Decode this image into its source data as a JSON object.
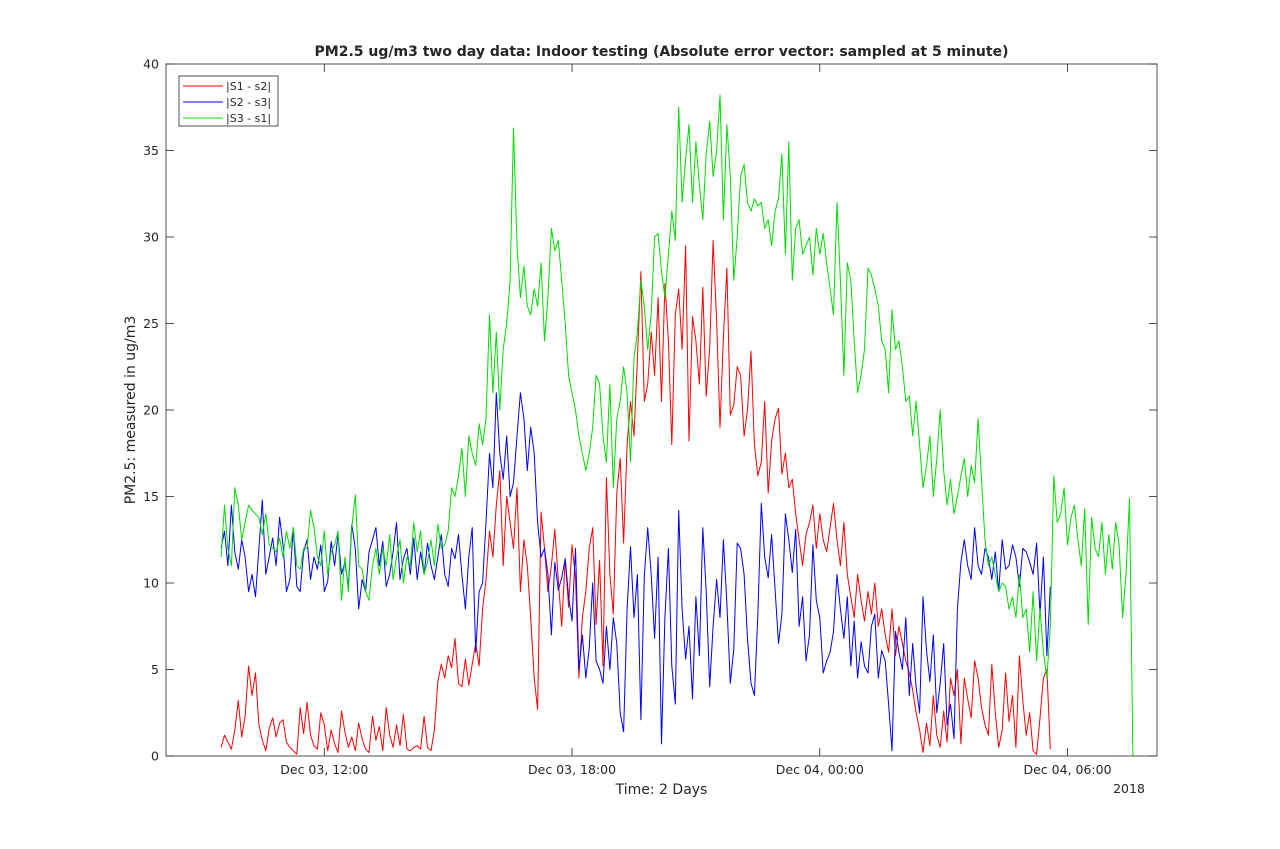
{
  "chart_data": {
    "type": "line",
    "title": "PM2.5 ug/m3 two day data: Indoor testing (Absolute error vector: sampled at 5 minute)",
    "xlabel": "Time: 2 Days",
    "ylabel": "PM2.5: measured in ug/m3",
    "x_year_label": "2018",
    "ylim": [
      0,
      40
    ],
    "yticks": [
      0,
      5,
      10,
      15,
      20,
      25,
      30,
      35,
      40
    ],
    "xlim": [
      "2018-12-03 08:10",
      "2018-12-04 08:10"
    ],
    "xticks": [
      {
        "value": "2018-12-03 12:00",
        "label": "Dec 03, 12:00"
      },
      {
        "value": "2018-12-03 18:00",
        "label": "Dec 03, 18:00"
      },
      {
        "value": "2018-12-04 00:00",
        "label": "Dec 04, 00:00"
      },
      {
        "value": "2018-12-04 06:00",
        "label": "Dec 04, 06:00"
      }
    ],
    "x_start": "2018-12-03 09:30",
    "x_step_minutes": 5,
    "legend_position": "top-left",
    "grid": false,
    "series": [
      {
        "name": "|S1 - s2|",
        "color": "#ff0000",
        "values": [
          0.5,
          1.2,
          0.8,
          0.4,
          1.5,
          3.2,
          1.1,
          2.3,
          5.2,
          3.5,
          4.8,
          1.8,
          0.9,
          0.3,
          1.6,
          2.2,
          1.1,
          1.9,
          2.1,
          0.8,
          0.5,
          0.3,
          0.1,
          2.8,
          1.3,
          3.1,
          1.2,
          0.6,
          0.4,
          2.5,
          1.8,
          0.3,
          1.5,
          0.7,
          0.2,
          2.6,
          1.4,
          0.5,
          1.1,
          0.3,
          1.9,
          1.0,
          0.4,
          0.2,
          2.3,
          0.9,
          1.7,
          0.3,
          2.8,
          1.2,
          0.5,
          1.8,
          0.6,
          2.4,
          0.4,
          0.3,
          0.5,
          0.6,
          0.4,
          2.3,
          0.5,
          0.3,
          1.5,
          4.3,
          5.3,
          4.5,
          5.8,
          5.1,
          6.8,
          4.2,
          4.0,
          5.6,
          4.1,
          5.3,
          6.5,
          5.2,
          8.5,
          10.2,
          13.0,
          11.5,
          14.5,
          16.5,
          11.0,
          15.0,
          13.5,
          12.0,
          15.5,
          9.5,
          12.5,
          11.0,
          8.0,
          4.5,
          2.7,
          14.1,
          12.0,
          9.5,
          11.0,
          13.1,
          10.2,
          7.5,
          11.4,
          8.6,
          12.2,
          10.3,
          4.5,
          8.0,
          9.5,
          12.0,
          13.2,
          7.6,
          11.3,
          5.2,
          16.1,
          10.5,
          8.2,
          15.2,
          17.2,
          12.3,
          18.0,
          20.5,
          18.5,
          23.0,
          28.0,
          20.5,
          21.5,
          24.5,
          22.0,
          26.5,
          20.5,
          27.3,
          24.0,
          18.0,
          25.5,
          27.0,
          23.5,
          29.5,
          18.2,
          25.4,
          24.0,
          21.5,
          27.1,
          20.8,
          23.6,
          29.8,
          25.2,
          19.0,
          24.2,
          28.2,
          19.7,
          20.3,
          22.5,
          22.0,
          18.5,
          20.0,
          23.4,
          18.0,
          16.2,
          17.0,
          20.5,
          15.2,
          18.2,
          19.5,
          20.1,
          16.3,
          17.5,
          15.5,
          16.0,
          14.0,
          12.5,
          11.0,
          12.8,
          13.5,
          14.5,
          12.0,
          14.0,
          12.5,
          11.8,
          13.2,
          14.6,
          12.5,
          11.0,
          13.5,
          10.5,
          9.2,
          8.0,
          10.5,
          9.0,
          7.8,
          9.5,
          8.2,
          10.0,
          7.5,
          8.5,
          7.0,
          6.0,
          8.5,
          5.8,
          7.5,
          6.5,
          5.5,
          4.8,
          3.8,
          2.5,
          1.5,
          0.2,
          1.9,
          0.6,
          3.5,
          1.2,
          0.5,
          2.6,
          0.8,
          4.5,
          3.5,
          5.0,
          0.7,
          4.5,
          3.3,
          2.2,
          5.5,
          4.5,
          2.8,
          1.8,
          1.2,
          5.3,
          2.5,
          0.5,
          1.5,
          4.8,
          2.0,
          3.5,
          0.5,
          5.8,
          3.2,
          1.2,
          2.5,
          0.3,
          0.1,
          2.2,
          4.5,
          5.0,
          0.4
        ]
      },
      {
        "name": "|S2 - s3|",
        "color": "#0000ff",
        "values": [
          12.0,
          13.0,
          11.0,
          14.5,
          11.8,
          10.8,
          12.5,
          11.5,
          9.5,
          10.5,
          9.2,
          12.0,
          14.8,
          10.5,
          11.5,
          12.6,
          11.0,
          13.8,
          12.2,
          9.5,
          10.2,
          13.2,
          9.8,
          9.5,
          11.8,
          12.5,
          10.2,
          11.5,
          10.8,
          12.2,
          9.5,
          10.1,
          12.4,
          11.0,
          12.8,
          10.5,
          11.2,
          9.8,
          13.4,
          12.0,
          8.5,
          10.2,
          9.5,
          11.8,
          12.5,
          13.2,
          11.0,
          12.4,
          9.8,
          10.5,
          11.8,
          13.5,
          10.2,
          11.4,
          12.0,
          10.5,
          12.6,
          10.2,
          11.8,
          10.5,
          12.3,
          11.0,
          10.2,
          11.5,
          12.8,
          10.5,
          9.8,
          12.0,
          11.4,
          12.8,
          10.5,
          8.5,
          11.5,
          13.2,
          6.0,
          9.5,
          10.0,
          13.5,
          17.5,
          15.5,
          21.0,
          17.5,
          16.0,
          18.5,
          15.0,
          15.8,
          18.5,
          21.0,
          19.5,
          16.5,
          19.0,
          17.5,
          13.5,
          11.5,
          12.0,
          10.5,
          7.0,
          11.2,
          9.6,
          10.3,
          11.4,
          9.2,
          7.8,
          12.0,
          5.0,
          7.0,
          4.5,
          6.2,
          10.0,
          5.5,
          5.0,
          4.2,
          7.5,
          5.0,
          8.0,
          6.5,
          2.5,
          1.4,
          8.5,
          12.1,
          8.0,
          10.5,
          2.1,
          10.4,
          13.2,
          10.5,
          6.8,
          11.5,
          0.7,
          8.0,
          12.0,
          5.2,
          3.0,
          14.2,
          8.5,
          5.6,
          7.5,
          3.3,
          9.2,
          5.8,
          13.2,
          9.5,
          4.0,
          7.5,
          10.2,
          8.0,
          12.5,
          8.8,
          4.2,
          6.2,
          12.3,
          12.0,
          10.5,
          6.8,
          4.2,
          3.5,
          8.1,
          14.6,
          11.5,
          10.3,
          12.8,
          9.6,
          6.5,
          8.2,
          14.0,
          12.5,
          10.6,
          13.1,
          7.5,
          9.2,
          5.5,
          7.0,
          12.2,
          9.0,
          8.0,
          4.8,
          5.5,
          6.0,
          7.2,
          10.5,
          8.5,
          6.8,
          9.2,
          5.2,
          7.8,
          4.5,
          6.6,
          5.2,
          4.8,
          7.5,
          8.2,
          4.5,
          6.1,
          5.5,
          3.0,
          0.3,
          7.2,
          6.0,
          5.0,
          8.0,
          3.5,
          6.5,
          4.0,
          2.5,
          9.2,
          6.1,
          4.3,
          7.0,
          2.5,
          4.2,
          6.5,
          1.8,
          3.0,
          1.0,
          8.5,
          11.2,
          12.5,
          11.0,
          10.2,
          13.2,
          11.0,
          10.5,
          12.0,
          11.5,
          10.2,
          11.8,
          9.5,
          12.5,
          10.8,
          11.0,
          12.2,
          11.5,
          9.8,
          12.0,
          11.8,
          11.2,
          10.5,
          12.3,
          8.2,
          11.5,
          5.8,
          9.8
        ]
      },
      {
        "name": "|S3 - s1|",
        "color": "#00dd00",
        "values": [
          11.5,
          14.5,
          12.0,
          11.0,
          15.5,
          14.5,
          12.5,
          13.5,
          14.5,
          14.2,
          14.0,
          13.8,
          12.8,
          14.0,
          12.2,
          12.0,
          11.8,
          12.6,
          11.5,
          13.0,
          12.0,
          13.2,
          11.0,
          10.8,
          12.0,
          12.0,
          14.2,
          13.2,
          11.5,
          11.0,
          13.0,
          10.5,
          11.8,
          12.2,
          13.0,
          9.0,
          11.5,
          9.5,
          13.2,
          15.1,
          11.0,
          10.8,
          9.5,
          9.0,
          11.0,
          12.0,
          10.5,
          12.0,
          11.0,
          12.8,
          10.2,
          11.5,
          12.5,
          10.0,
          11.5,
          11.0,
          13.5,
          11.8,
          13.0,
          10.5,
          11.2,
          12.5,
          11.0,
          13.4,
          12.0,
          12.2,
          13.0,
          15.5,
          15.0,
          16.2,
          17.8,
          15.0,
          18.5,
          17.5,
          16.8,
          19.2,
          18.0,
          19.5,
          25.5,
          21.0,
          24.5,
          20.0,
          23.5,
          25.0,
          27.5,
          36.3,
          29.5,
          26.5,
          28.3,
          26.0,
          25.5,
          27.0,
          26.0,
          28.5,
          24.0,
          26.5,
          30.5,
          29.2,
          29.8,
          27.5,
          25.0,
          22.0,
          21.0,
          20.0,
          18.5,
          17.5,
          16.5,
          17.5,
          19.0,
          22.0,
          21.5,
          18.5,
          17.0,
          21.5,
          15.5,
          19.5,
          20.5,
          22.5,
          21.0,
          17.0,
          23.0,
          24.5,
          27.5,
          26.0,
          23.5,
          25.5,
          30.0,
          30.2,
          28.0,
          26.5,
          29.0,
          31.5,
          29.8,
          37.5,
          32.0,
          34.5,
          36.5,
          32.0,
          35.5,
          33.0,
          31.0,
          34.8,
          36.7,
          33.5,
          35.0,
          38.2,
          31.0,
          36.5,
          33.5,
          27.5,
          30.0,
          33.5,
          34.2,
          32.0,
          31.5,
          32.2,
          31.8,
          32.0,
          30.5,
          31.0,
          29.5,
          31.5,
          32.2,
          34.8,
          29.0,
          35.5,
          27.5,
          30.5,
          31.0,
          29.0,
          29.5,
          30.0,
          27.8,
          30.5,
          29.0,
          30.2,
          28.5,
          27.0,
          25.5,
          32.0,
          27.5,
          22.0,
          28.5,
          27.5,
          24.0,
          21.0,
          22.0,
          23.5,
          28.2,
          27.8,
          27.0,
          26.0,
          24.0,
          23.5,
          21.0,
          25.8,
          23.5,
          24.0,
          22.5,
          20.5,
          20.8,
          18.5,
          20.5,
          18.0,
          15.5,
          16.8,
          18.5,
          15.0,
          17.2,
          20.0,
          16.5,
          14.5,
          16.0,
          14.0,
          15.0,
          16.2,
          17.2,
          15.0,
          16.8,
          15.8,
          19.5,
          16.0,
          12.5,
          11.0,
          11.5,
          10.5,
          9.5,
          10.0,
          9.8,
          8.5,
          9.2,
          8.0,
          10.5,
          8.0,
          8.5,
          6.0,
          9.5,
          5.5,
          8.5,
          6.0,
          4.5,
          7.5,
          16.2,
          13.5,
          14.0,
          15.5,
          12.2,
          13.8,
          14.5,
          12.5,
          11.0,
          14.3,
          7.6,
          13.8,
          12.0,
          11.5,
          13.5,
          10.5,
          12.8,
          10.8,
          13.5,
          12.2,
          8.0,
          10.5,
          14.9,
          0.0
        ]
      }
    ]
  }
}
